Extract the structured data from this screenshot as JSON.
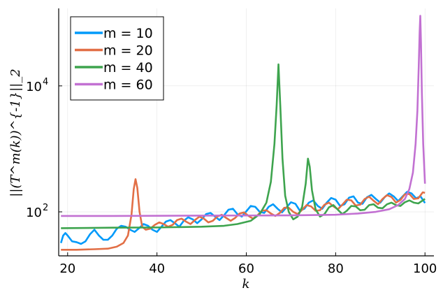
{
  "chart_data": {
    "type": "line",
    "xlabel": "k",
    "ylabel": "||(T^m(k))^{-1}||_2",
    "xlim": [
      18,
      102
    ],
    "ylim": [
      20,
      170000
    ],
    "yscale": "log",
    "grid": true,
    "legend_position": "top-left",
    "x_ticks": [
      20,
      40,
      60,
      80,
      100
    ],
    "y_ticks": [
      {
        "value": 100,
        "base": "10",
        "exp": "2"
      },
      {
        "value": 10000,
        "base": "10",
        "exp": "4"
      }
    ],
    "series": [
      {
        "name": "m = 10",
        "color": "#009AFA",
        "points": [
          [
            18.5,
            32
          ],
          [
            19,
            42
          ],
          [
            19.5,
            46
          ],
          [
            20,
            42
          ],
          [
            21,
            34
          ],
          [
            22,
            33
          ],
          [
            23,
            31
          ],
          [
            24,
            34
          ],
          [
            25,
            44
          ],
          [
            26,
            52
          ],
          [
            27,
            42
          ],
          [
            28,
            36
          ],
          [
            29,
            36
          ],
          [
            30,
            42
          ],
          [
            31,
            54
          ],
          [
            32,
            60
          ],
          [
            33,
            58
          ],
          [
            34,
            52
          ],
          [
            35,
            48
          ],
          [
            36,
            55
          ],
          [
            37,
            64
          ],
          [
            38,
            60
          ],
          [
            39,
            52
          ],
          [
            40,
            48
          ],
          [
            41,
            58
          ],
          [
            42,
            70
          ],
          [
            43,
            74
          ],
          [
            44,
            66
          ],
          [
            45,
            58
          ],
          [
            46,
            72
          ],
          [
            47,
            82
          ],
          [
            48,
            76
          ],
          [
            49,
            66
          ],
          [
            50,
            76
          ],
          [
            51,
            92
          ],
          [
            52,
            96
          ],
          [
            53,
            84
          ],
          [
            54,
            74
          ],
          [
            55,
            88
          ],
          [
            56,
            108
          ],
          [
            57,
            112
          ],
          [
            58,
            92
          ],
          [
            59,
            84
          ],
          [
            60,
            102
          ],
          [
            61,
            124
          ],
          [
            62,
            120
          ],
          [
            63,
            100
          ],
          [
            64,
            96
          ],
          [
            65,
            120
          ],
          [
            66,
            132
          ],
          [
            67,
            112
          ],
          [
            68,
            98
          ],
          [
            69,
            118
          ],
          [
            70,
            142
          ],
          [
            71,
            134
          ],
          [
            72,
            104
          ],
          [
            73,
            112
          ],
          [
            74,
            140
          ],
          [
            75,
            152
          ],
          [
            76,
            124
          ],
          [
            77,
            112
          ],
          [
            78,
            140
          ],
          [
            79,
            166
          ],
          [
            80,
            156
          ],
          [
            81,
            124
          ],
          [
            82,
            132
          ],
          [
            83,
            168
          ],
          [
            84,
            176
          ],
          [
            85,
            140
          ],
          [
            86,
            134
          ],
          [
            87,
            170
          ],
          [
            88,
            186
          ],
          [
            89,
            160
          ],
          [
            90,
            140
          ],
          [
            91,
            172
          ],
          [
            92,
            196
          ],
          [
            93,
            176
          ],
          [
            94,
            148
          ],
          [
            95,
            176
          ],
          [
            96,
            208
          ],
          [
            97,
            196
          ],
          [
            98,
            164
          ],
          [
            99,
            176
          ],
          [
            100,
            138
          ]
        ]
      },
      {
        "name": "m = 20",
        "color": "#E26F46",
        "points": [
          [
            18.5,
            25
          ],
          [
            22,
            25
          ],
          [
            26,
            25.5
          ],
          [
            29,
            26
          ],
          [
            31,
            28
          ],
          [
            32.5,
            32
          ],
          [
            33.5,
            42
          ],
          [
            34.3,
            90
          ],
          [
            34.8,
            230
          ],
          [
            35.2,
            330
          ],
          [
            35.6,
            240
          ],
          [
            36.1,
            100
          ],
          [
            36.7,
            58
          ],
          [
            37.5,
            52
          ],
          [
            38.5,
            54
          ],
          [
            39.5,
            62
          ],
          [
            40.5,
            68
          ],
          [
            41.5,
            64
          ],
          [
            42.5,
            58
          ],
          [
            43.5,
            62
          ],
          [
            44.5,
            74
          ],
          [
            45.5,
            78
          ],
          [
            46.5,
            70
          ],
          [
            47.5,
            64
          ],
          [
            48.5,
            74
          ],
          [
            49.5,
            84
          ],
          [
            50.5,
            78
          ],
          [
            51.5,
            68
          ],
          [
            52.5,
            72
          ],
          [
            53.5,
            84
          ],
          [
            54.5,
            90
          ],
          [
            55.5,
            80
          ],
          [
            56.5,
            72
          ],
          [
            57.5,
            80
          ],
          [
            58.5,
            94
          ],
          [
            59.5,
            98
          ],
          [
            60.5,
            86
          ],
          [
            61.5,
            78
          ],
          [
            62.5,
            88
          ],
          [
            63.5,
            104
          ],
          [
            64.5,
            106
          ],
          [
            65.5,
            94
          ],
          [
            66.5,
            86
          ],
          [
            67.5,
            96
          ],
          [
            68.5,
            116
          ],
          [
            69.5,
            116
          ],
          [
            70.5,
            100
          ],
          [
            71.5,
            92
          ],
          [
            72.5,
            108
          ],
          [
            73.5,
            128
          ],
          [
            74.5,
            122
          ],
          [
            75.5,
            104
          ],
          [
            76.5,
            106
          ],
          [
            77.5,
            130
          ],
          [
            78.5,
            140
          ],
          [
            79.5,
            122
          ],
          [
            80.5,
            110
          ],
          [
            81.5,
            130
          ],
          [
            82.5,
            156
          ],
          [
            83.5,
            152
          ],
          [
            84.5,
            126
          ],
          [
            85.5,
            130
          ],
          [
            86.5,
            160
          ],
          [
            87.5,
            174
          ],
          [
            88.5,
            150
          ],
          [
            89.5,
            132
          ],
          [
            90.5,
            160
          ],
          [
            91.5,
            184
          ],
          [
            92.5,
            172
          ],
          [
            93.5,
            140
          ],
          [
            94.5,
            154
          ],
          [
            95.5,
            190
          ],
          [
            96.5,
            192
          ],
          [
            97.5,
            160
          ],
          [
            98.5,
            164
          ],
          [
            99.5,
            204
          ],
          [
            100,
            200
          ]
        ]
      },
      {
        "name": "m = 40",
        "color": "#3EA44E",
        "points": [
          [
            18.5,
            55
          ],
          [
            30,
            56
          ],
          [
            40,
            56.5
          ],
          [
            50,
            58
          ],
          [
            55,
            60
          ],
          [
            58,
            64
          ],
          [
            61,
            72
          ],
          [
            63,
            92
          ],
          [
            64.5,
            140
          ],
          [
            65.5,
            300
          ],
          [
            66.3,
            1200
          ],
          [
            66.8,
            5000
          ],
          [
            67.2,
            22000
          ],
          [
            67.6,
            5000
          ],
          [
            68.1,
            700
          ],
          [
            68.7,
            180
          ],
          [
            69.5,
            100
          ],
          [
            70.5,
            76
          ],
          [
            71.5,
            84
          ],
          [
            72.5,
            120
          ],
          [
            73.3,
            280
          ],
          [
            73.8,
            700
          ],
          [
            74.2,
            520
          ],
          [
            74.7,
            220
          ],
          [
            75.5,
            110
          ],
          [
            76.5,
            84
          ],
          [
            77.5,
            92
          ],
          [
            78.5,
            118
          ],
          [
            79.5,
            128
          ],
          [
            80.5,
            108
          ],
          [
            81.5,
            92
          ],
          [
            82.5,
            104
          ],
          [
            83.5,
            124
          ],
          [
            84.5,
            122
          ],
          [
            85.5,
            106
          ],
          [
            86.5,
            108
          ],
          [
            87.5,
            128
          ],
          [
            88.5,
            132
          ],
          [
            89.5,
            116
          ],
          [
            90.5,
            114
          ],
          [
            91.5,
            132
          ],
          [
            92.5,
            140
          ],
          [
            93.5,
            128
          ],
          [
            94.5,
            124
          ],
          [
            95.5,
            142
          ],
          [
            96.5,
            152
          ],
          [
            97.5,
            140
          ],
          [
            98.5,
            136
          ],
          [
            99.5,
            152
          ],
          [
            100,
            160
          ]
        ]
      },
      {
        "name": "m = 60",
        "color": "#C271D2",
        "points": [
          [
            18.5,
            86
          ],
          [
            30,
            86
          ],
          [
            40,
            86.5
          ],
          [
            50,
            87
          ],
          [
            60,
            87.5
          ],
          [
            70,
            88
          ],
          [
            80,
            90
          ],
          [
            85,
            94
          ],
          [
            89,
            100
          ],
          [
            92,
            110
          ],
          [
            94,
            128
          ],
          [
            95.5,
            160
          ],
          [
            96.5,
            230
          ],
          [
            97.3,
            420
          ],
          [
            97.9,
            1200
          ],
          [
            98.3,
            4000
          ],
          [
            98.6,
            20000
          ],
          [
            98.8,
            70000
          ],
          [
            98.95,
            130000
          ],
          [
            99.1,
            50000
          ],
          [
            99.3,
            8000
          ],
          [
            99.6,
            1200
          ],
          [
            100,
            280
          ]
        ]
      }
    ]
  }
}
